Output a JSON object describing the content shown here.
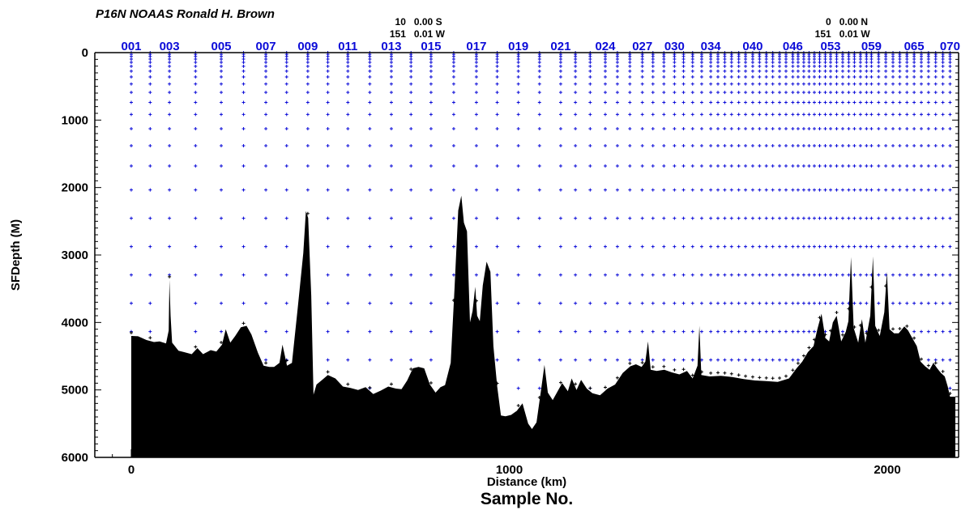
{
  "chart_data": {
    "type": "scatter",
    "title": "P16N  NOAAS Ronald H. Brown",
    "xlabel": "Distance (km)",
    "ylabel": "SFDepth (M)",
    "secondary_xlabel": "Sample No.",
    "xlim": [
      -100,
      2180
    ],
    "ylim": [
      6000,
      0
    ],
    "y_inverted": true,
    "grid": false,
    "x_ticks": [
      0,
      1000,
      2000
    ],
    "y_ticks": [
      0,
      1000,
      2000,
      3000,
      4000,
      5000,
      6000
    ],
    "coordinate_labels": [
      {
        "distance_km": 735,
        "lat_deg": "10",
        "lat_min": "0.00 S",
        "lon_deg": "151",
        "lon_min": "0.01 W"
      },
      {
        "distance_km": 1860,
        "lat_deg": "0",
        "lat_min": "0.00 N",
        "lon_deg": "151",
        "lon_min": "0.01 W"
      }
    ],
    "station_labels": [
      {
        "label": "001",
        "km": 0
      },
      {
        "label": "003",
        "km": 101
      },
      {
        "label": "005",
        "km": 238
      },
      {
        "label": "007",
        "km": 356
      },
      {
        "label": "009",
        "km": 467
      },
      {
        "label": "011",
        "km": 573
      },
      {
        "label": "013",
        "km": 688
      },
      {
        "label": "015",
        "km": 793
      },
      {
        "label": "017",
        "km": 913
      },
      {
        "label": "019",
        "km": 1024
      },
      {
        "label": "021",
        "km": 1136
      },
      {
        "label": "024",
        "km": 1254
      },
      {
        "label": "027",
        "km": 1352
      },
      {
        "label": "030",
        "km": 1437
      },
      {
        "label": "034",
        "km": 1533
      },
      {
        "label": "040",
        "km": 1644
      },
      {
        "label": "046",
        "km": 1750
      },
      {
        "label": "053",
        "km": 1850
      },
      {
        "label": "059",
        "km": 1958
      },
      {
        "label": "065",
        "km": 2071
      },
      {
        "label": "070",
        "km": 2166
      }
    ],
    "station_km": [
      0,
      50,
      101,
      170,
      238,
      297,
      356,
      411,
      467,
      520,
      573,
      631,
      688,
      740,
      793,
      853,
      913,
      968,
      1024,
      1080,
      1136,
      1175,
      1214,
      1254,
      1286,
      1319,
      1352,
      1380,
      1409,
      1437,
      1461,
      1485,
      1509,
      1533,
      1552,
      1570,
      1588,
      1607,
      1625,
      1644,
      1662,
      1680,
      1697,
      1715,
      1732,
      1750,
      1764,
      1779,
      1793,
      1807,
      1821,
      1836,
      1850,
      1866,
      1882,
      1898,
      1913,
      1929,
      1945,
      1958,
      1977,
      1996,
      2015,
      2033,
      2052,
      2071,
      2090,
      2109,
      2128,
      2147,
      2166
    ],
    "bottom_profile": [
      [
        0,
        4200
      ],
      [
        18,
        4205
      ],
      [
        40,
        4260
      ],
      [
        60,
        4290
      ],
      [
        75,
        4280
      ],
      [
        92,
        4310
      ],
      [
        99,
        4120
      ],
      [
        101,
        3370
      ],
      [
        104,
        3900
      ],
      [
        108,
        4300
      ],
      [
        125,
        4420
      ],
      [
        140,
        4440
      ],
      [
        160,
        4470
      ],
      [
        175,
        4380
      ],
      [
        190,
        4470
      ],
      [
        210,
        4410
      ],
      [
        225,
        4430
      ],
      [
        240,
        4330
      ],
      [
        250,
        4100
      ],
      [
        262,
        4300
      ],
      [
        275,
        4200
      ],
      [
        290,
        4070
      ],
      [
        305,
        4050
      ],
      [
        318,
        4180
      ],
      [
        335,
        4450
      ],
      [
        350,
        4640
      ],
      [
        365,
        4660
      ],
      [
        378,
        4660
      ],
      [
        392,
        4600
      ],
      [
        400,
        4330
      ],
      [
        412,
        4640
      ],
      [
        425,
        4600
      ],
      [
        440,
        3800
      ],
      [
        455,
        2970
      ],
      [
        462,
        2350
      ],
      [
        468,
        2450
      ],
      [
        476,
        3600
      ],
      [
        482,
        5070
      ],
      [
        490,
        4920
      ],
      [
        505,
        4850
      ],
      [
        520,
        4780
      ],
      [
        540,
        4830
      ],
      [
        560,
        4950
      ],
      [
        580,
        4970
      ],
      [
        600,
        5000
      ],
      [
        620,
        4960
      ],
      [
        640,
        5060
      ],
      [
        660,
        5010
      ],
      [
        680,
        4950
      ],
      [
        700,
        4980
      ],
      [
        715,
        4990
      ],
      [
        730,
        4860
      ],
      [
        745,
        4680
      ],
      [
        760,
        4660
      ],
      [
        775,
        4680
      ],
      [
        790,
        4920
      ],
      [
        805,
        5040
      ],
      [
        818,
        4960
      ],
      [
        830,
        4930
      ],
      [
        845,
        4600
      ],
      [
        855,
        3500
      ],
      [
        865,
        2340
      ],
      [
        873,
        2120
      ],
      [
        880,
        2520
      ],
      [
        888,
        2650
      ],
      [
        896,
        4000
      ],
      [
        903,
        3830
      ],
      [
        910,
        3470
      ],
      [
        915,
        3900
      ],
      [
        922,
        3980
      ],
      [
        930,
        3450
      ],
      [
        940,
        3100
      ],
      [
        950,
        3250
      ],
      [
        958,
        4350
      ],
      [
        968,
        4950
      ],
      [
        978,
        5380
      ],
      [
        990,
        5390
      ],
      [
        1005,
        5370
      ],
      [
        1020,
        5310
      ],
      [
        1035,
        5200
      ],
      [
        1050,
        5500
      ],
      [
        1060,
        5580
      ],
      [
        1072,
        5480
      ],
      [
        1085,
        4960
      ],
      [
        1093,
        4630
      ],
      [
        1102,
        5040
      ],
      [
        1115,
        5150
      ],
      [
        1128,
        5020
      ],
      [
        1140,
        4900
      ],
      [
        1155,
        5020
      ],
      [
        1165,
        4830
      ],
      [
        1178,
        5000
      ],
      [
        1190,
        4850
      ],
      [
        1205,
        4980
      ],
      [
        1220,
        5050
      ],
      [
        1240,
        5080
      ],
      [
        1260,
        4980
      ],
      [
        1280,
        4920
      ],
      [
        1300,
        4750
      ],
      [
        1320,
        4650
      ],
      [
        1335,
        4620
      ],
      [
        1350,
        4660
      ],
      [
        1360,
        4580
      ],
      [
        1367,
        4280
      ],
      [
        1374,
        4700
      ],
      [
        1390,
        4720
      ],
      [
        1410,
        4700
      ],
      [
        1430,
        4740
      ],
      [
        1450,
        4770
      ],
      [
        1470,
        4720
      ],
      [
        1485,
        4830
      ],
      [
        1498,
        4640
      ],
      [
        1503,
        4050
      ],
      [
        1508,
        4780
      ],
      [
        1530,
        4800
      ],
      [
        1560,
        4790
      ],
      [
        1590,
        4810
      ],
      [
        1620,
        4840
      ],
      [
        1650,
        4860
      ],
      [
        1680,
        4870
      ],
      [
        1710,
        4880
      ],
      [
        1740,
        4830
      ],
      [
        1760,
        4680
      ],
      [
        1775,
        4580
      ],
      [
        1790,
        4440
      ],
      [
        1805,
        4350
      ],
      [
        1815,
        4100
      ],
      [
        1826,
        3870
      ],
      [
        1836,
        4230
      ],
      [
        1846,
        4280
      ],
      [
        1856,
        4000
      ],
      [
        1866,
        3900
      ],
      [
        1878,
        4280
      ],
      [
        1890,
        4140
      ],
      [
        1897,
        3980
      ],
      [
        1904,
        3030
      ],
      [
        1911,
        4080
      ],
      [
        1923,
        4300
      ],
      [
        1933,
        3950
      ],
      [
        1942,
        4300
      ],
      [
        1955,
        3900
      ],
      [
        1962,
        3020
      ],
      [
        1968,
        4050
      ],
      [
        1980,
        4200
      ],
      [
        1992,
        3850
      ],
      [
        1999,
        3250
      ],
      [
        2006,
        4100
      ],
      [
        2018,
        4160
      ],
      [
        2030,
        4160
      ],
      [
        2045,
        4060
      ],
      [
        2055,
        4120
      ],
      [
        2068,
        4250
      ],
      [
        2078,
        4350
      ],
      [
        2088,
        4580
      ],
      [
        2100,
        4650
      ],
      [
        2112,
        4700
      ],
      [
        2122,
        4600
      ],
      [
        2132,
        4680
      ],
      [
        2142,
        4750
      ],
      [
        2152,
        4800
      ],
      [
        2160,
        4950
      ],
      [
        2166,
        5100
      ],
      [
        2180,
        5100
      ]
    ]
  },
  "colors": {
    "seafloor": "#000000",
    "sample_marker": "#0b0bd8",
    "station_label": "#0b0bd8",
    "axis": "#000000"
  }
}
